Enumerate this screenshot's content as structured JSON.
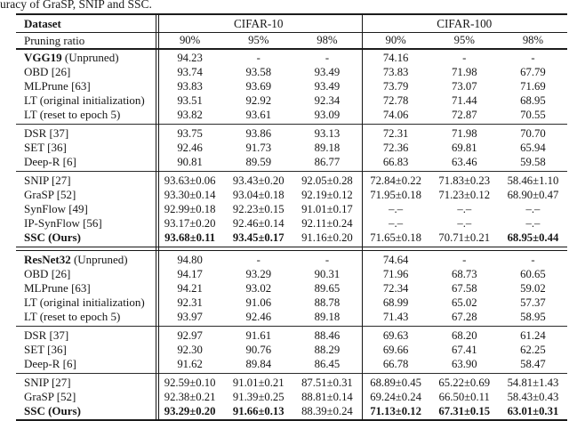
{
  "colors": {
    "background": "#ffffff",
    "text": "#161616",
    "rule": "#1c1c1c"
  },
  "caption": "uracy of GraSP, SNIP and SSC.",
  "table": {
    "header": {
      "dataset_label": "Dataset",
      "group1": "CIFAR-10",
      "group2": "CIFAR-100",
      "pruning_label": "Pruning ratio",
      "ratios": [
        "90%",
        "95%",
        "98%",
        "90%",
        "95%",
        "98%"
      ]
    },
    "groups": [
      {
        "name": "VGG19",
        "blocks": [
          {
            "rows": [
              {
                "method": "VGG19 (Unpruned)",
                "method_bold": "VGG19",
                "values": [
                  "94.23",
                  "-",
                  "-",
                  "74.16",
                  "-",
                  "-"
                ],
                "bold_values": [
                  0,
                  0,
                  0,
                  0,
                  0,
                  0
                ]
              },
              {
                "method": "OBD [26]",
                "method_bold": "",
                "values": [
                  "93.74",
                  "93.58",
                  "93.49",
                  "73.83",
                  "71.98",
                  "67.79"
                ],
                "bold_values": [
                  0,
                  0,
                  0,
                  0,
                  0,
                  0
                ]
              },
              {
                "method": "MLPrune [63]",
                "method_bold": "",
                "values": [
                  "93.83",
                  "93.69",
                  "93.49",
                  "73.79",
                  "73.07",
                  "71.69"
                ],
                "bold_values": [
                  0,
                  0,
                  0,
                  0,
                  0,
                  0
                ]
              },
              {
                "method": "LT (original initialization)",
                "method_bold": "",
                "values": [
                  "93.51",
                  "92.92",
                  "92.34",
                  "72.78",
                  "71.44",
                  "68.95"
                ],
                "bold_values": [
                  0,
                  0,
                  0,
                  0,
                  0,
                  0
                ]
              },
              {
                "method": "LT (reset to epoch 5)",
                "method_bold": "",
                "values": [
                  "93.82",
                  "93.61",
                  "93.09",
                  "74.06",
                  "72.87",
                  "70.55"
                ],
                "bold_values": [
                  0,
                  0,
                  0,
                  0,
                  0,
                  0
                ]
              }
            ]
          },
          {
            "rows": [
              {
                "method": "DSR [37]",
                "method_bold": "",
                "values": [
                  "93.75",
                  "93.86",
                  "93.13",
                  "72.31",
                  "71.98",
                  "70.70"
                ],
                "bold_values": [
                  0,
                  0,
                  0,
                  0,
                  0,
                  0
                ]
              },
              {
                "method": "SET [36]",
                "method_bold": "",
                "values": [
                  "92.46",
                  "91.73",
                  "89.18",
                  "72.36",
                  "69.81",
                  "65.94"
                ],
                "bold_values": [
                  0,
                  0,
                  0,
                  0,
                  0,
                  0
                ]
              },
              {
                "method": "Deep-R [6]",
                "method_bold": "",
                "values": [
                  "90.81",
                  "89.59",
                  "86.77",
                  "66.83",
                  "63.46",
                  "59.58"
                ],
                "bold_values": [
                  0,
                  0,
                  0,
                  0,
                  0,
                  0
                ]
              }
            ]
          },
          {
            "rows": [
              {
                "method": "SNIP [27]",
                "method_bold": "",
                "values": [
                  "93.63±0.06",
                  "93.43±0.20",
                  "92.05±0.28",
                  "72.84±0.22",
                  "71.83±0.23",
                  "58.46±1.10"
                ],
                "bold_values": [
                  0,
                  0,
                  0,
                  0,
                  0,
                  0
                ]
              },
              {
                "method": "GraSP [52]",
                "method_bold": "",
                "values": [
                  "93.30±0.14",
                  "93.04±0.18",
                  "92.19±0.12",
                  "71.95±0.18",
                  "71.23±0.12",
                  "68.90±0.47"
                ],
                "bold_values": [
                  0,
                  0,
                  0,
                  0,
                  0,
                  0
                ]
              },
              {
                "method": "SynFlow [49]",
                "method_bold": "",
                "values": [
                  "92.99±0.18",
                  "92.23±0.15",
                  "91.01±0.17",
                  "–.–",
                  "–.–",
                  "–.–"
                ],
                "bold_values": [
                  0,
                  0,
                  0,
                  0,
                  0,
                  0
                ]
              },
              {
                "method": "IP-SynFlow [56]",
                "method_bold": "",
                "values": [
                  "93.17±0.20",
                  "92.46±0.14",
                  "92.11±0.24",
                  "–.–",
                  "–.–",
                  "–.–"
                ],
                "bold_values": [
                  0,
                  0,
                  0,
                  0,
                  0,
                  0
                ]
              },
              {
                "method": "SSC (Ours)",
                "method_bold": "SSC (Ours)",
                "values": [
                  "93.68±0.11",
                  "93.45±0.17",
                  "91.16±0.20",
                  "71.65±0.18",
                  "70.71±0.21",
                  "68.95±0.44"
                ],
                "bold_values": [
                  1,
                  1,
                  0,
                  0,
                  0,
                  1
                ]
              }
            ]
          }
        ]
      },
      {
        "name": "ResNet32",
        "blocks": [
          {
            "rows": [
              {
                "method": "ResNet32 (Unpruned)",
                "method_bold": "ResNet32",
                "values": [
                  "94.80",
                  "-",
                  "-",
                  "74.64",
                  "-",
                  "-"
                ],
                "bold_values": [
                  0,
                  0,
                  0,
                  0,
                  0,
                  0
                ]
              },
              {
                "method": "OBD [26]",
                "method_bold": "",
                "values": [
                  "94.17",
                  "93.29",
                  "90.31",
                  "71.96",
                  "68.73",
                  "60.65"
                ],
                "bold_values": [
                  0,
                  0,
                  0,
                  0,
                  0,
                  0
                ]
              },
              {
                "method": "MLPrune [63]",
                "method_bold": "",
                "values": [
                  "94.21",
                  "93.02",
                  "89.65",
                  "72.34",
                  "67.58",
                  "59.02"
                ],
                "bold_values": [
                  0,
                  0,
                  0,
                  0,
                  0,
                  0
                ]
              },
              {
                "method": "LT (original initialization)",
                "method_bold": "",
                "values": [
                  "92.31",
                  "91.06",
                  "88.78",
                  "68.99",
                  "65.02",
                  "57.37"
                ],
                "bold_values": [
                  0,
                  0,
                  0,
                  0,
                  0,
                  0
                ]
              },
              {
                "method": "LT (reset to epoch 5)",
                "method_bold": "",
                "values": [
                  "93.97",
                  "92.46",
                  "89.18",
                  "71.43",
                  "67.28",
                  "58.95"
                ],
                "bold_values": [
                  0,
                  0,
                  0,
                  0,
                  0,
                  0
                ]
              }
            ]
          },
          {
            "rows": [
              {
                "method": "DSR [37]",
                "method_bold": "",
                "values": [
                  "92.97",
                  "91.61",
                  "88.46",
                  "69.63",
                  "68.20",
                  "61.24"
                ],
                "bold_values": [
                  0,
                  0,
                  0,
                  0,
                  0,
                  0
                ]
              },
              {
                "method": "SET [36]",
                "method_bold": "",
                "values": [
                  "92.30",
                  "90.76",
                  "88.29",
                  "69.66",
                  "67.41",
                  "62.25"
                ],
                "bold_values": [
                  0,
                  0,
                  0,
                  0,
                  0,
                  0
                ]
              },
              {
                "method": "Deep-R [6]",
                "method_bold": "",
                "values": [
                  "91.62",
                  "89.84",
                  "86.45",
                  "66.78",
                  "63.90",
                  "58.47"
                ],
                "bold_values": [
                  0,
                  0,
                  0,
                  0,
                  0,
                  0
                ]
              }
            ]
          },
          {
            "rows": [
              {
                "method": "SNIP [27]",
                "method_bold": "",
                "values": [
                  "92.59±0.10",
                  "91.01±0.21",
                  "87.51±0.31",
                  "68.89±0.45",
                  "65.22±0.69",
                  "54.81±1.43"
                ],
                "bold_values": [
                  0,
                  0,
                  0,
                  0,
                  0,
                  0
                ]
              },
              {
                "method": "GraSP [52]",
                "method_bold": "",
                "values": [
                  "92.38±0.21",
                  "91.39±0.25",
                  "88.81±0.14",
                  "69.24±0.24",
                  "66.50±0.11",
                  "58.43±0.43"
                ],
                "bold_values": [
                  0,
                  0,
                  0,
                  0,
                  0,
                  0
                ]
              },
              {
                "method": "SSC (Ours)",
                "method_bold": "SSC (Ours)",
                "values": [
                  "93.29±0.20",
                  "91.66±0.13",
                  "88.39±0.24",
                  "71.13±0.12",
                  "67.31±0.15",
                  "63.01±0.31"
                ],
                "bold_values": [
                  1,
                  1,
                  0,
                  1,
                  1,
                  1
                ]
              }
            ]
          }
        ]
      }
    ]
  }
}
